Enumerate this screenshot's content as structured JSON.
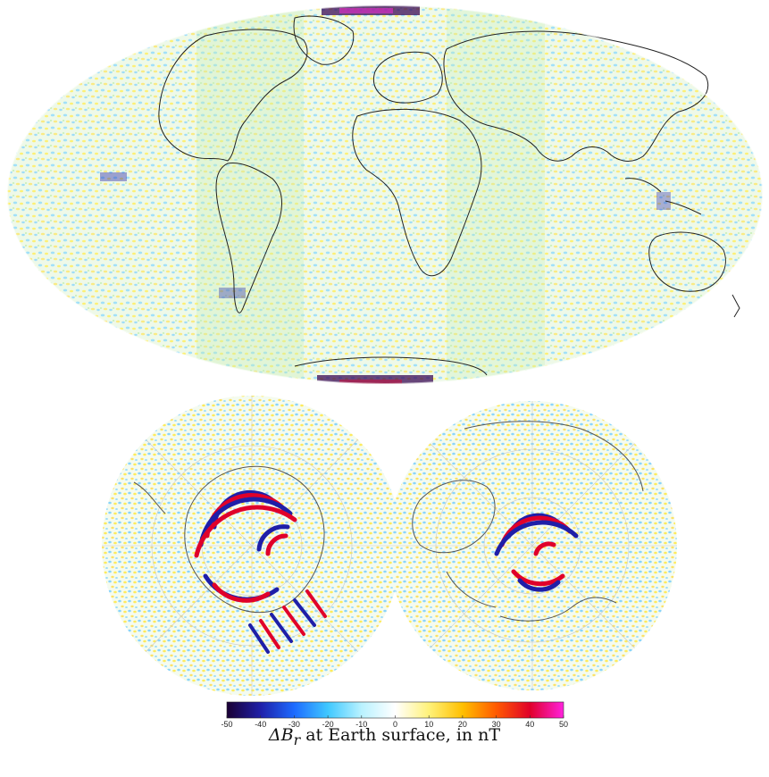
{
  "figure": {
    "maps": [
      {
        "id": "global",
        "projection": "mollweide (Hammer–Aitoff style ellipse)"
      },
      {
        "id": "south-pole",
        "projection": "polar stereographic, south pole"
      },
      {
        "id": "north-pole",
        "projection": "polar stereographic, north pole"
      }
    ],
    "colorbar": {
      "min": -50,
      "max": 50,
      "tick_labels": [
        "-50",
        "-40",
        "-30",
        "-20",
        "-10",
        "0",
        "10",
        "20",
        "30",
        "40",
        "50"
      ],
      "colormap": [
        "#1a0033",
        "#1f1fa8",
        "#1d6bff",
        "#3fc8ff",
        "#b9f2ff",
        "#ffffff",
        "#fff27a",
        "#ffbf00",
        "#ff5a00",
        "#e0002a",
        "#ff22dd"
      ]
    },
    "caption": {
      "math": "ΔB",
      "sub": "r",
      "text": " at Earth surface, in nT"
    }
  }
}
